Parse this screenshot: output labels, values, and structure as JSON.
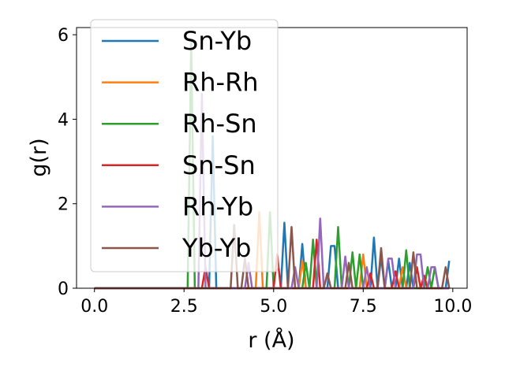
{
  "chart_data": {
    "type": "line",
    "title": "",
    "xlabel": "r (Å)",
    "ylabel": "g(r)",
    "xlim": [
      -0.5,
      10.4
    ],
    "ylim": [
      0,
      6.17
    ],
    "x_step": 0.1,
    "x_max": 9.9,
    "xticks": [
      "0.0",
      "2.5",
      "5.0",
      "7.5",
      "10.0"
    ],
    "xtick_values": [
      0,
      2.5,
      5,
      7.5,
      10
    ],
    "yticks": [
      "0",
      "2",
      "4",
      "6"
    ],
    "ytick_values": [
      0,
      2,
      4,
      6
    ],
    "grid": false,
    "legend_position": "upper-left",
    "series": [
      {
        "name": "Sn-Yb",
        "color": "#1f77b4",
        "points": [
          [
            3.3,
            3.6
          ],
          [
            5.3,
            1.55
          ],
          [
            5.8,
            1.05
          ],
          [
            6.6,
            1.0
          ],
          [
            6.7,
            1.0
          ],
          [
            7.8,
            1.2
          ],
          [
            8.0,
            0.75
          ],
          [
            8.2,
            0.65
          ],
          [
            8.5,
            0.7
          ],
          [
            8.8,
            0.6
          ],
          [
            9.9,
            0.65
          ]
        ]
      },
      {
        "name": "Rh-Rh",
        "color": "#ff7f0e",
        "points": [
          [
            4.6,
            1.8
          ],
          [
            5.8,
            0.65
          ],
          [
            7.5,
            0.8
          ],
          [
            8.6,
            0.5
          ],
          [
            9.2,
            0.2
          ]
        ]
      },
      {
        "name": "Rh-Sn",
        "color": "#2ca02c",
        "points": [
          [
            2.7,
            5.8
          ],
          [
            4.9,
            1.8
          ],
          [
            5.9,
            0.6
          ],
          [
            6.1,
            1.15
          ],
          [
            6.8,
            1.45
          ],
          [
            7.2,
            0.85
          ],
          [
            7.4,
            0.8
          ],
          [
            8.7,
            0.9
          ],
          [
            9.3,
            0.5
          ],
          [
            9.5,
            0.5
          ]
        ]
      },
      {
        "name": "Sn-Sn",
        "color": "#d62728",
        "points": [
          [
            3.1,
            0.5
          ],
          [
            5.1,
            0.8
          ],
          [
            6.2,
            1.15
          ],
          [
            7.7,
            0.35
          ],
          [
            8.4,
            0.4
          ],
          [
            9.0,
            0.5
          ],
          [
            9.2,
            0.3
          ]
        ]
      },
      {
        "name": "Rh-Yb",
        "color": "#9467bd",
        "points": [
          [
            3.0,
            4.6
          ],
          [
            4.3,
            0.6
          ],
          [
            5.6,
            0.5
          ],
          [
            6.3,
            1.65
          ],
          [
            7.0,
            0.75
          ],
          [
            7.6,
            0.5
          ],
          [
            8.2,
            0.7
          ],
          [
            8.3,
            0.7
          ],
          [
            9.0,
            0.8
          ],
          [
            9.1,
            0.8
          ],
          [
            9.4,
            0.5
          ],
          [
            9.5,
            0.5
          ]
        ]
      },
      {
        "name": "Yb-Yb",
        "color": "#8c564b",
        "points": [
          [
            3.9,
            1.5
          ],
          [
            4.2,
            0.7
          ],
          [
            5.5,
            1.45
          ],
          [
            6.5,
            0.35
          ],
          [
            7.1,
            0.6
          ],
          [
            8.0,
            0.95
          ],
          [
            8.9,
            0.85
          ],
          [
            9.8,
            0.5
          ]
        ]
      }
    ]
  }
}
